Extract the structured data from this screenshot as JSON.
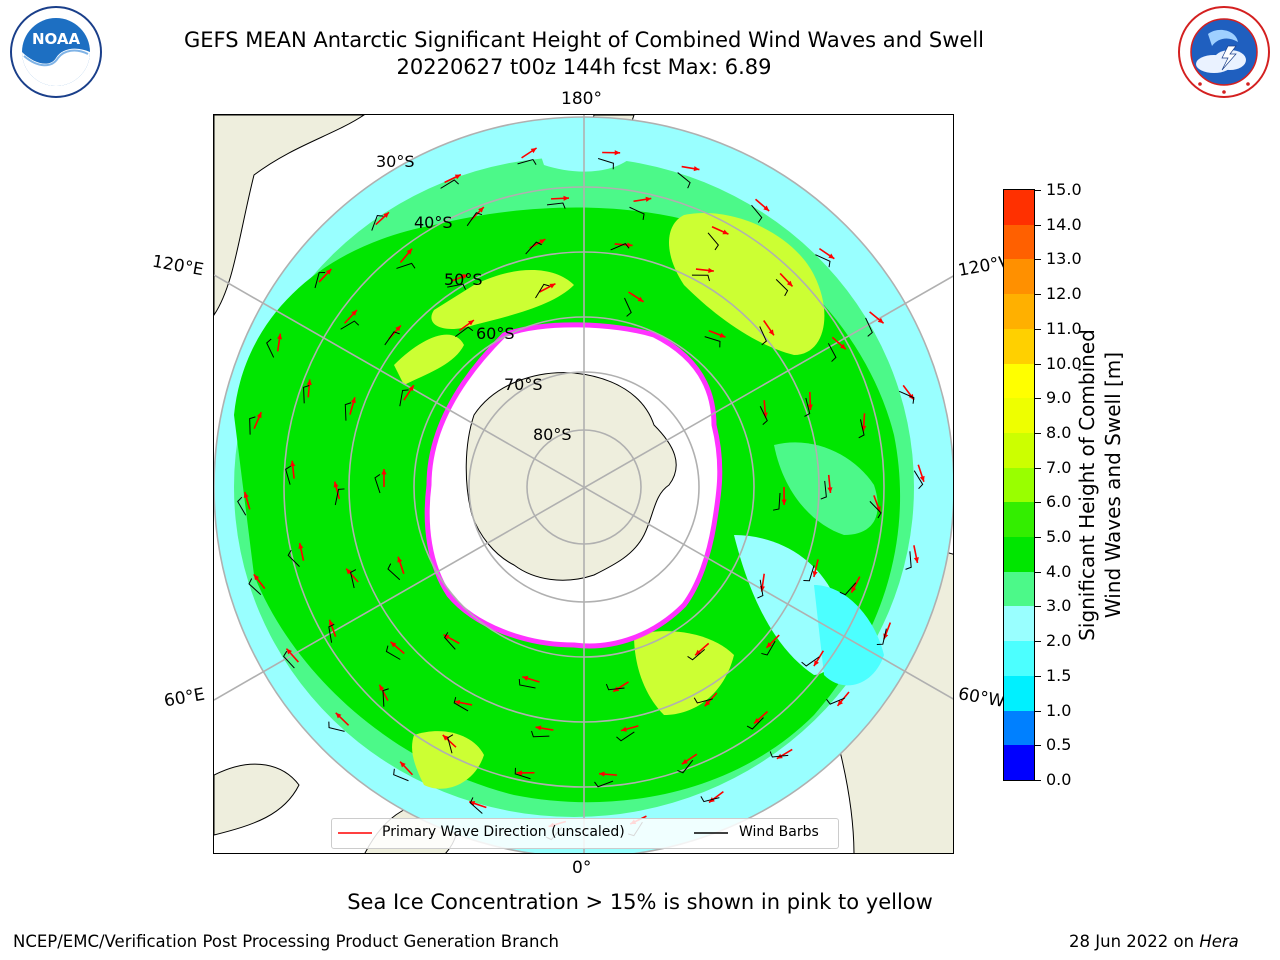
{
  "header": {
    "title_line1": "GEFS MEAN Antarctic Significant Height of Combined Wind Waves and Swell",
    "title_line2": "20220627 t00z 144h fcst   Max: 6.89"
  },
  "logos": {
    "left": {
      "name": "NOAA",
      "text": "NOAA",
      "ring_text": "NATIONAL OCEANIC AND ATMOSPHERIC ADMINISTRATION · U.S. DEPARTMENT OF COMMERCE"
    },
    "right": {
      "name": "National Weather Service",
      "ring_text": "NATIONAL WEATHER SERVICE"
    }
  },
  "map": {
    "projection": "south-polar-stereographic",
    "longitude_labels": {
      "top": "180°",
      "bottom": "0°",
      "upper_left": "120°E",
      "lower_left": "60°E",
      "upper_right": "120°W",
      "lower_right": "60°W"
    },
    "latitude_labels": [
      "30°S",
      "40°S",
      "50°S",
      "60°S",
      "70°S",
      "80°S"
    ],
    "legend": {
      "wave_direction": "Primary Wave Direction (unscaled)",
      "wind_barbs": "Wind Barbs"
    },
    "colors": {
      "land": "#eeeedd",
      "ice": "#ffffff",
      "ice_edge": "#ff33ff",
      "ocean_low": "#99ffff",
      "ocean_mid": "#4cf989",
      "ocean_high": "#00e600",
      "ocean_peak": "#ccff33",
      "arrow": "#ff0000",
      "barb": "#000000"
    }
  },
  "colorbar": {
    "label_line1": "Significant Height of Combined",
    "label_line2": "Wind Waves and Swell [m]",
    "ticks": [
      "15.0",
      "14.0",
      "13.0",
      "12.0",
      "11.0",
      "10.0",
      "9.0",
      "8.0",
      "7.0",
      "6.0",
      "5.0",
      "4.0",
      "3.0",
      "2.0",
      "1.5",
      "1.0",
      "0.5",
      "0.0"
    ],
    "colors": [
      "#ff0000",
      "#ff3000",
      "#ff6000",
      "#ff9000",
      "#ffb000",
      "#ffd000",
      "#ffff00",
      "#eeff00",
      "#ccff00",
      "#99ff00",
      "#33ee00",
      "#00e600",
      "#4cf989",
      "#99ffff",
      "#4cffff",
      "#00f0ff",
      "#0080ff",
      "#0000ff"
    ]
  },
  "footer": {
    "note": "Sea Ice Concentration > 15% is shown in pink to yellow",
    "credit": "NCEP/EMC/Verification Post Processing Product Generation Branch",
    "date": "28 Jun 2022 on ",
    "host": "Hera"
  }
}
